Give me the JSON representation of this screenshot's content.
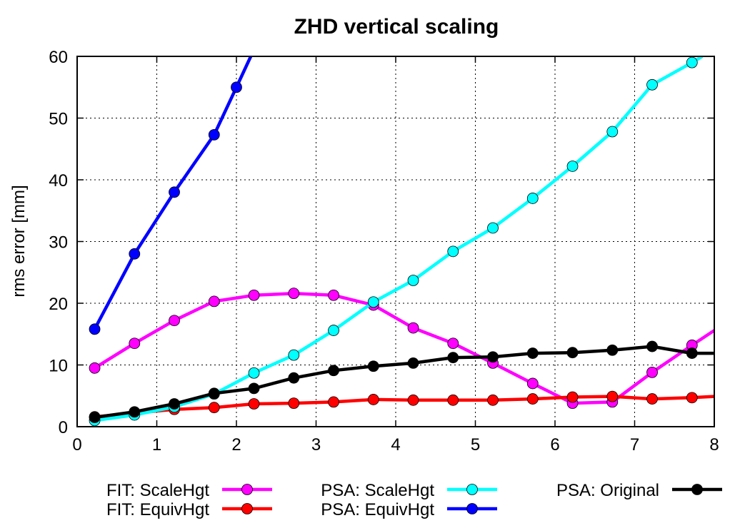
{
  "chart_data": {
    "type": "line",
    "title": "ZHD vertical scaling",
    "xlabel": "",
    "ylabel": "rms error [mm]",
    "xlim": [
      0,
      8
    ],
    "ylim": [
      0,
      60
    ],
    "xticks": [
      "0",
      "1",
      "2",
      "3",
      "4",
      "5",
      "6",
      "7",
      "8"
    ],
    "yticks": [
      "0",
      "10",
      "20",
      "30",
      "40",
      "50",
      "60"
    ],
    "grid": true,
    "legend_position": "bottom",
    "series": [
      {
        "name": "FIT: ScaleHgt",
        "color": "#ff00ff",
        "x": [
          0.22,
          0.72,
          1.22,
          1.72,
          2.22,
          2.72,
          3.22,
          3.72,
          4.22,
          4.72,
          5.22,
          5.72,
          6.22,
          6.72,
          7.22,
          7.72,
          8.0
        ],
        "y": [
          9.5,
          13.5,
          17.2,
          20.3,
          21.3,
          21.6,
          21.3,
          19.7,
          16.0,
          13.5,
          10.3,
          7.0,
          3.8,
          4.0,
          8.8,
          13.2,
          15.6
        ]
      },
      {
        "name": "FIT: EquivHgt",
        "color": "#ff0000",
        "x": [
          0.22,
          0.72,
          1.22,
          1.72,
          2.22,
          2.72,
          3.22,
          3.72,
          4.22,
          4.72,
          5.22,
          5.72,
          6.22,
          6.72,
          7.22,
          7.72,
          8.0
        ],
        "y": [
          1.6,
          2.2,
          2.8,
          3.1,
          3.7,
          3.8,
          4.0,
          4.4,
          4.3,
          4.3,
          4.3,
          4.5,
          4.8,
          4.9,
          4.5,
          4.7,
          4.9
        ]
      },
      {
        "name": "PSA: ScaleHgt",
        "color": "#00ffff",
        "x": [
          0.22,
          0.72,
          1.22,
          1.72,
          2.22,
          2.72,
          3.22,
          3.72,
          4.22,
          4.72,
          5.22,
          5.72,
          6.22,
          6.72,
          7.22,
          7.72,
          7.85
        ],
        "y": [
          1.0,
          1.9,
          3.2,
          5.3,
          8.7,
          11.6,
          15.6,
          20.2,
          23.7,
          28.4,
          32.2,
          37.0,
          42.2,
          47.8,
          55.4,
          59.0,
          60.0
        ]
      },
      {
        "name": "PSA: EquivHgt",
        "color": "#0000ff",
        "x": [
          0.22,
          0.72,
          1.22,
          1.72,
          2.0,
          2.18
        ],
        "y": [
          15.8,
          28.0,
          38.0,
          47.3,
          55.0,
          60.0
        ]
      },
      {
        "name": "PSA: Original",
        "color": "#000000",
        "x": [
          0.22,
          0.72,
          1.22,
          1.72,
          2.22,
          2.72,
          3.22,
          3.72,
          4.22,
          4.72,
          5.22,
          5.72,
          6.22,
          6.72,
          7.22,
          7.72,
          8.0
        ],
        "y": [
          1.5,
          2.4,
          3.7,
          5.4,
          6.2,
          7.9,
          9.1,
          9.8,
          10.3,
          11.2,
          11.3,
          11.9,
          12.0,
          12.4,
          13.0,
          11.9,
          11.9
        ]
      }
    ]
  }
}
